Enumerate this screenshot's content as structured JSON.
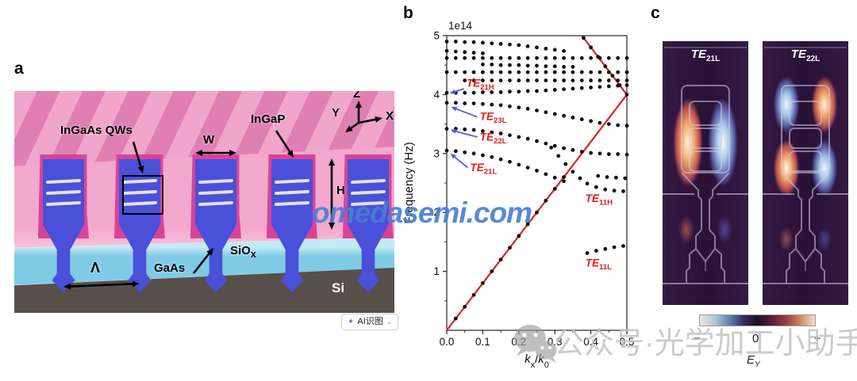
{
  "figure": {
    "panel_a": {
      "label": "a",
      "annotations": {
        "ingaas_qws": "InGaAs QWs",
        "w": "W",
        "ingap": "InGaP",
        "h": "H",
        "lambda": "Λ",
        "gaas": "GaAs",
        "siox_main": "SiO",
        "siox_sub": "x",
        "si": "Si",
        "axis_x": "X",
        "axis_y": "Y",
        "axis_z": "Z"
      }
    },
    "panel_b": {
      "label": "b"
    },
    "panel_c": {
      "label": "c",
      "modes": [
        {
          "main": "TE",
          "sub": "21L"
        },
        {
          "main": "TE",
          "sub": "22L"
        }
      ],
      "colorbar": {
        "minus": "−",
        "zero": "0",
        "plus": "+",
        "field_main": "E",
        "field_sub": "Y"
      }
    }
  },
  "chart_data": {
    "type": "scatter",
    "title": "",
    "ylabel": "Frequency (Hz)",
    "offset_label": "1e14",
    "xlabel_parts": [
      {
        "t": "k",
        "italic": true
      },
      {
        "t": "x",
        "sub": true
      },
      {
        "t": "/",
        "italic": false
      },
      {
        "t": "k",
        "italic": true
      },
      {
        "t": "0",
        "sub": true
      }
    ],
    "xlim": [
      0,
      0.5
    ],
    "ylim": [
      0,
      5
    ],
    "xticks": [
      0.0,
      0.1,
      0.2,
      0.3,
      0.4,
      0.5
    ],
    "yticks": [
      1,
      2,
      3,
      4,
      5
    ],
    "grid": false,
    "line_color": "#e2211c",
    "dot_color": "#111111",
    "arrow_color": "#5a5ae8",
    "label_color": "#e8191c",
    "light_line": [
      [
        0,
        0
      ],
      [
        0.5,
        4.0
      ],
      [
        0.375,
        5.0
      ]
    ],
    "series": [
      {
        "name": "TE11-lightline",
        "points": [
          [
            0.025,
            0.2
          ],
          [
            0.05,
            0.4
          ],
          [
            0.075,
            0.6
          ],
          [
            0.1,
            0.8
          ],
          [
            0.125,
            1.0
          ],
          [
            0.15,
            1.2
          ],
          [
            0.175,
            1.4
          ],
          [
            0.2,
            1.6
          ],
          [
            0.225,
            1.8
          ],
          [
            0.25,
            2.0
          ],
          [
            0.275,
            2.2
          ],
          [
            0.3,
            2.4
          ],
          [
            0.325,
            2.6
          ]
        ]
      },
      {
        "name": "folded-lightline",
        "points": [
          [
            0.38,
            4.96
          ],
          [
            0.4,
            4.8
          ],
          [
            0.42,
            4.64
          ],
          [
            0.44,
            4.48
          ],
          [
            0.46,
            4.32
          ],
          [
            0.48,
            4.16
          ],
          [
            0.5,
            4.0
          ]
        ]
      },
      {
        "name": "band-4.9",
        "points": [
          [
            0,
            4.9
          ],
          [
            0.025,
            4.9
          ],
          [
            0.05,
            4.89
          ],
          [
            0.075,
            4.89
          ],
          [
            0.1,
            4.88
          ],
          [
            0.125,
            4.87
          ],
          [
            0.15,
            4.86
          ],
          [
            0.175,
            4.85
          ],
          [
            0.2,
            4.84
          ],
          [
            0.225,
            4.82
          ],
          [
            0.25,
            4.8
          ],
          [
            0.275,
            4.78
          ],
          [
            0.3,
            4.76
          ],
          [
            0.325,
            4.74
          ]
        ]
      },
      {
        "name": "band-4.74",
        "points": [
          [
            0,
            4.74
          ],
          [
            0.025,
            4.73
          ],
          [
            0.05,
            4.72
          ],
          [
            0.075,
            4.71
          ],
          [
            0.1,
            4.7
          ]
        ]
      },
      {
        "name": "band-4.62",
        "points": [
          [
            0,
            4.62
          ],
          [
            0.025,
            4.62
          ],
          [
            0.05,
            4.62
          ],
          [
            0.075,
            4.62
          ],
          [
            0.1,
            4.62
          ],
          [
            0.125,
            4.62
          ],
          [
            0.15,
            4.62
          ],
          [
            0.175,
            4.62
          ],
          [
            0.2,
            4.62
          ],
          [
            0.225,
            4.62
          ],
          [
            0.25,
            4.62
          ],
          [
            0.275,
            4.62
          ],
          [
            0.3,
            4.62
          ],
          [
            0.325,
            4.62
          ],
          [
            0.35,
            4.62
          ],
          [
            0.375,
            4.62
          ],
          [
            0.4,
            4.62
          ],
          [
            0.425,
            4.62
          ],
          [
            0.45,
            4.62
          ],
          [
            0.475,
            4.62
          ],
          [
            0.5,
            4.62
          ]
        ]
      },
      {
        "name": "band-4.5",
        "points": [
          [
            0.1,
            4.51
          ],
          [
            0.125,
            4.51
          ],
          [
            0.15,
            4.5
          ],
          [
            0.175,
            4.5
          ],
          [
            0.2,
            4.5
          ],
          [
            0.225,
            4.49
          ],
          [
            0.25,
            4.49
          ],
          [
            0.275,
            4.48
          ],
          [
            0.3,
            4.48
          ],
          [
            0.325,
            4.47
          ],
          [
            0.35,
            4.47
          ]
        ]
      },
      {
        "name": "band-4.38",
        "points": [
          [
            0,
            4.38
          ],
          [
            0.025,
            4.38
          ],
          [
            0.05,
            4.38
          ],
          [
            0.075,
            4.38
          ],
          [
            0.1,
            4.38
          ],
          [
            0.125,
            4.38
          ],
          [
            0.15,
            4.38
          ],
          [
            0.175,
            4.38
          ],
          [
            0.2,
            4.38
          ],
          [
            0.225,
            4.38
          ],
          [
            0.25,
            4.38
          ],
          [
            0.275,
            4.38
          ],
          [
            0.3,
            4.38
          ],
          [
            0.325,
            4.38
          ],
          [
            0.35,
            4.38
          ],
          [
            0.375,
            4.38
          ],
          [
            0.4,
            4.38
          ],
          [
            0.425,
            4.38
          ],
          [
            0.45,
            4.38
          ],
          [
            0.475,
            4.38
          ],
          [
            0.5,
            4.38
          ]
        ]
      },
      {
        "name": "band-4.24",
        "points": [
          [
            0.05,
            4.24
          ],
          [
            0.075,
            4.24
          ],
          [
            0.1,
            4.24
          ],
          [
            0.125,
            4.24
          ],
          [
            0.15,
            4.24
          ],
          [
            0.175,
            4.24
          ],
          [
            0.2,
            4.24
          ],
          [
            0.225,
            4.24
          ],
          [
            0.25,
            4.24
          ],
          [
            0.275,
            4.24
          ],
          [
            0.3,
            4.24
          ],
          [
            0.325,
            4.24
          ],
          [
            0.35,
            4.24
          ],
          [
            0.375,
            4.24
          ],
          [
            0.4,
            4.24
          ],
          [
            0.425,
            4.24
          ],
          [
            0.45,
            4.24
          ],
          [
            0.475,
            4.24
          ],
          [
            0.5,
            4.24
          ]
        ]
      },
      {
        "name": "TE21H",
        "points": [
          [
            0,
            4.03
          ],
          [
            0.025,
            4.03
          ],
          [
            0.05,
            4.03
          ],
          [
            0.075,
            4.03
          ],
          [
            0.1,
            4.04
          ],
          [
            0.125,
            4.04
          ],
          [
            0.15,
            4.04
          ],
          [
            0.175,
            4.05
          ],
          [
            0.2,
            4.05
          ],
          [
            0.225,
            4.06
          ],
          [
            0.25,
            4.06
          ],
          [
            0.275,
            4.07
          ],
          [
            0.3,
            4.08
          ],
          [
            0.325,
            4.09
          ],
          [
            0.35,
            4.1
          ],
          [
            0.375,
            4.11
          ],
          [
            0.4,
            4.12
          ],
          [
            0.425,
            4.13
          ],
          [
            0.45,
            4.14
          ],
          [
            0.475,
            4.15
          ],
          [
            0.5,
            4.16
          ]
        ]
      },
      {
        "name": "TE23L",
        "points": [
          [
            0,
            3.86
          ],
          [
            0.025,
            3.86
          ],
          [
            0.05,
            3.85
          ],
          [
            0.075,
            3.85
          ],
          [
            0.1,
            3.84
          ],
          [
            0.125,
            3.83
          ],
          [
            0.15,
            3.82
          ],
          [
            0.175,
            3.8
          ],
          [
            0.2,
            3.78
          ],
          [
            0.225,
            3.76
          ],
          [
            0.25,
            3.73
          ],
          [
            0.275,
            3.7
          ],
          [
            0.3,
            3.67
          ],
          [
            0.325,
            3.64
          ],
          [
            0.35,
            3.61
          ],
          [
            0.375,
            3.58
          ],
          [
            0.4,
            3.55
          ],
          [
            0.425,
            3.52
          ],
          [
            0.45,
            3.5
          ],
          [
            0.475,
            3.48
          ],
          [
            0.5,
            3.47
          ]
        ]
      },
      {
        "name": "TE22L",
        "points": [
          [
            0,
            3.42
          ],
          [
            0.025,
            3.42
          ],
          [
            0.05,
            3.41
          ],
          [
            0.075,
            3.4
          ],
          [
            0.1,
            3.38
          ],
          [
            0.125,
            3.36
          ],
          [
            0.15,
            3.34
          ],
          [
            0.175,
            3.31
          ],
          [
            0.2,
            3.28
          ],
          [
            0.225,
            3.25
          ],
          [
            0.25,
            3.21
          ],
          [
            0.275,
            3.17
          ],
          [
            0.3,
            3.13
          ],
          [
            0.325,
            3.09
          ],
          [
            0.35,
            3.06
          ],
          [
            0.375,
            3.03
          ],
          [
            0.4,
            3.01
          ],
          [
            0.425,
            3.0
          ],
          [
            0.45,
            2.99
          ],
          [
            0.475,
            2.99
          ],
          [
            0.5,
            2.98
          ]
        ]
      },
      {
        "name": "TE21L",
        "points": [
          [
            0,
            3.05
          ],
          [
            0.025,
            3.04
          ],
          [
            0.05,
            3.02
          ],
          [
            0.075,
            3.0
          ],
          [
            0.1,
            2.97
          ],
          [
            0.125,
            2.94
          ],
          [
            0.15,
            2.9
          ],
          [
            0.175,
            2.86
          ],
          [
            0.2,
            2.81
          ],
          [
            0.225,
            2.76
          ],
          [
            0.25,
            2.71
          ],
          [
            0.275,
            2.65
          ],
          [
            0.3,
            2.59
          ],
          [
            0.325,
            2.53
          ]
        ]
      },
      {
        "name": "TE11H",
        "points": [
          [
            0.29,
            3.1
          ],
          [
            0.31,
            2.96
          ],
          [
            0.33,
            2.82
          ],
          [
            0.35,
            2.69
          ],
          [
            0.37,
            2.58
          ],
          [
            0.39,
            2.49
          ],
          [
            0.415,
            2.43
          ],
          [
            0.44,
            2.39
          ],
          [
            0.465,
            2.37
          ],
          [
            0.49,
            2.36
          ]
        ]
      },
      {
        "name": "band-2.6-right",
        "points": [
          [
            0.42,
            2.62
          ],
          [
            0.445,
            2.6
          ],
          [
            0.47,
            2.59
          ],
          [
            0.495,
            2.58
          ]
        ]
      },
      {
        "name": "TE11L",
        "points": [
          [
            0.39,
            1.31
          ],
          [
            0.415,
            1.35
          ],
          [
            0.44,
            1.38
          ],
          [
            0.465,
            1.41
          ],
          [
            0.49,
            1.43
          ]
        ]
      }
    ],
    "annotations": [
      {
        "main": "TE",
        "sub": "21H",
        "label": [
          0.055,
          4.13
        ],
        "from": [
          0.048,
          4.1
        ],
        "tip": [
          0.008,
          4.02
        ]
      },
      {
        "main": "TE",
        "sub": "23L",
        "label": [
          0.092,
          3.57
        ],
        "from": [
          0.085,
          3.62
        ],
        "tip": [
          0.012,
          3.79
        ]
      },
      {
        "main": "TE",
        "sub": "22L",
        "label": [
          0.092,
          3.22
        ],
        "from": [
          0.085,
          3.28
        ],
        "tip": [
          0.01,
          3.4
        ]
      },
      {
        "main": "TE",
        "sub": "21L",
        "label": [
          0.065,
          2.7
        ],
        "from": [
          0.058,
          2.76
        ],
        "tip": [
          0.01,
          3.0
        ]
      },
      {
        "main": "TE",
        "sub": "11H",
        "label": [
          0.385,
          2.18
        ]
      },
      {
        "main": "TE",
        "sub": "11L",
        "label": [
          0.385,
          1.08
        ]
      }
    ],
    "legend": null
  },
  "watermarks": {
    "center": "omedasemi.com",
    "bottom_text": "公众号·光学加工小助手",
    "icon": "wechat-icon"
  },
  "ai_button": {
    "icon": "sparkle-icon",
    "label": "AI识图",
    "chevron": "⌄"
  },
  "colors": {
    "stripe_light": "#f0a5ca",
    "stripe_dark": "#e07fb4",
    "pink_face": "#f2a9cd",
    "shell_pink": "#d8439a",
    "fin_blue": "#4a50d8",
    "qw_line": "#e3e3ea",
    "siox_cyan": "#7fcbe6",
    "siox_top": "#c2eaf5",
    "si_gray": "#57504a",
    "mode_bg": "#2b1535",
    "outline": "#d5cce0",
    "accent_red": "#e2211c",
    "annotation_blue": "#5a5ae8",
    "watermark_blue": "#4c7ed2",
    "watermark_gray": "#c2c2c2",
    "ai_purple": "#7c5cff"
  }
}
